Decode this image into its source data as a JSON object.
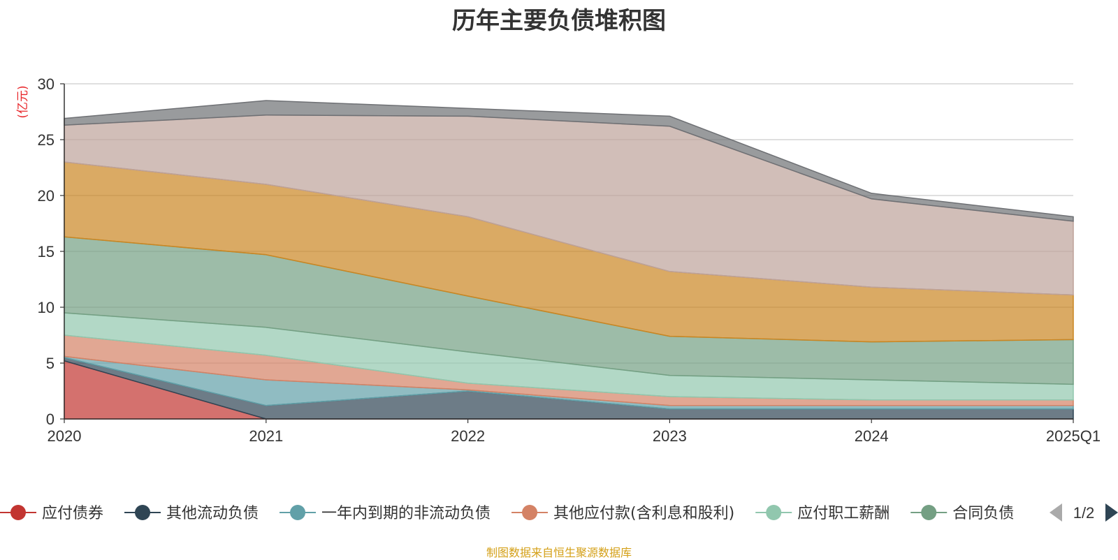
{
  "chart_data": {
    "type": "area",
    "title": "历年主要负债堆积图",
    "ylabel": "(亿元)",
    "xlabel": "",
    "categories": [
      "2020",
      "2021",
      "2022",
      "2023",
      "2024",
      "2025Q1"
    ],
    "ylim": [
      0,
      30
    ],
    "yticks": [
      0,
      5,
      10,
      15,
      20,
      25,
      30
    ],
    "grid": true,
    "stacked": true,
    "series": [
      {
        "name": "应付债券",
        "color": "#c23531",
        "values": [
          5.2,
          0,
          0,
          0,
          0,
          0
        ]
      },
      {
        "name": "其他流动负债",
        "color": "#2f4554",
        "values": [
          0.3,
          1.2,
          2.5,
          0.9,
          0.9,
          0.9
        ]
      },
      {
        "name": "一年内到期的非流动负债",
        "color": "#61a0a8",
        "values": [
          0.1,
          2.3,
          0.1,
          0.3,
          0.3,
          0.3
        ]
      },
      {
        "name": "其他应付款(含利息和股利)",
        "color": "#d48265",
        "values": [
          1.9,
          2.2,
          0.6,
          0.8,
          0.5,
          0.5
        ]
      },
      {
        "name": "应付职工薪酬",
        "color": "#91c7ae",
        "values": [
          2.0,
          2.5,
          2.8,
          1.9,
          1.8,
          1.4
        ]
      },
      {
        "name": "合同负债",
        "color": "#749f83",
        "values": [
          6.8,
          6.5,
          5.0,
          3.5,
          3.4,
          4.0
        ]
      },
      {
        "name": "",
        "color": "#ca8622",
        "values": [
          6.7,
          6.3,
          7.1,
          5.8,
          4.9,
          4.0
        ]
      },
      {
        "name": "",
        "color": "#bda29a",
        "values": [
          3.3,
          6.2,
          9.0,
          13.0,
          7.9,
          6.6
        ]
      },
      {
        "name": "",
        "color": "#6e7074",
        "values": [
          0.6,
          1.3,
          0.7,
          0.9,
          0.5,
          0.4
        ]
      }
    ],
    "legend": {
      "position": "bottom",
      "page": "1/2"
    }
  },
  "source": "制图数据来自恒生聚源数据库"
}
